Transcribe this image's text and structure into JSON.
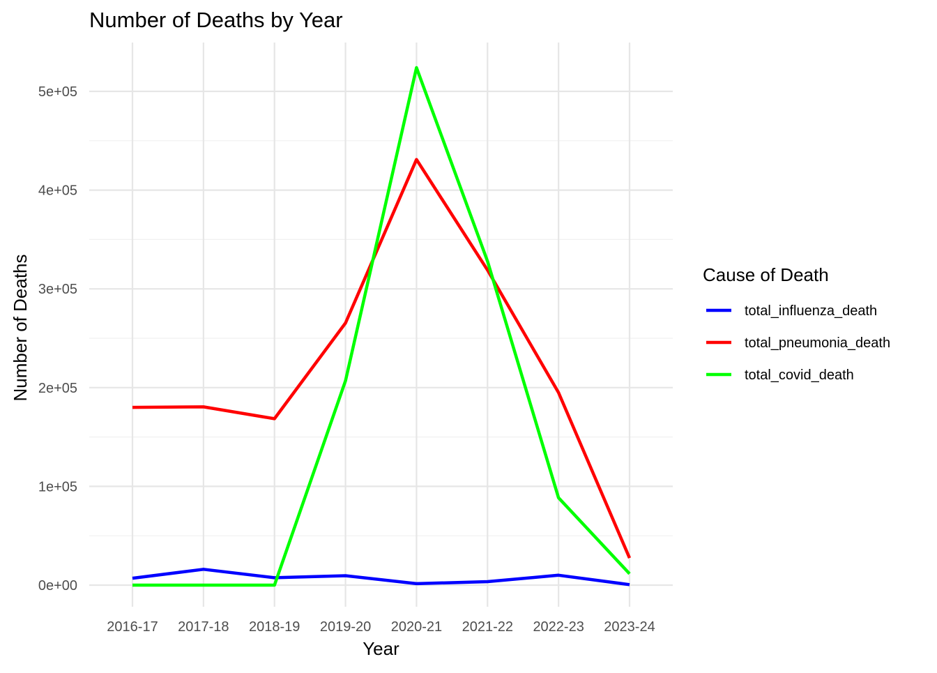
{
  "chart_data": {
    "type": "line",
    "title": "Number of Deaths by Year",
    "xlabel": "Year",
    "ylabel": "Number of Deaths",
    "categories": [
      "2016-17",
      "2017-18",
      "2018-19",
      "2019-20",
      "2020-21",
      "2021-22",
      "2022-23",
      "2023-24"
    ],
    "ylim": [
      -22000,
      550000
    ],
    "yticks": [
      0,
      100000,
      200000,
      300000,
      400000,
      500000
    ],
    "ytick_labels": [
      "0e+00",
      "1e+05",
      "2e+05",
      "3e+05",
      "4e+05",
      "5e+05"
    ],
    "grid": true,
    "legend": {
      "title": "Cause of Death",
      "position": "right"
    },
    "series": [
      {
        "name": "total_influenza_death",
        "color": "#0000ff",
        "values": [
          7000,
          16000,
          7500,
          9500,
          1500,
          3500,
          10000,
          500
        ]
      },
      {
        "name": "total_pneumonia_death",
        "color": "#ff0000",
        "values": [
          180000,
          180500,
          168500,
          265500,
          431000,
          319000,
          195000,
          27500
        ]
      },
      {
        "name": "total_covid_death",
        "color": "#00ff00",
        "values": [
          0,
          0,
          0,
          207000,
          524000,
          328000,
          88500,
          11500
        ]
      }
    ]
  }
}
